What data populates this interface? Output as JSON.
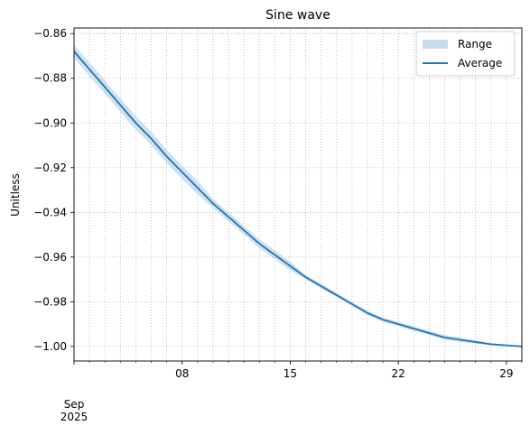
{
  "chart_data": {
    "type": "line",
    "title": "Sine wave",
    "xlabel": "",
    "ylabel": "Unitless",
    "x_start": "2025-09-01",
    "x_end": "2025-09-30",
    "ylim": [
      -1.0065,
      -0.8575
    ],
    "yticks": [
      -0.86,
      -0.88,
      -0.9,
      -0.92,
      -0.94,
      -0.96,
      -0.98,
      -1.0
    ],
    "ytick_labels": [
      "−0.86",
      "−0.88",
      "−0.90",
      "−0.92",
      "−0.94",
      "−0.96",
      "−0.98",
      "−1.00"
    ],
    "major_xticks": [
      {
        "date": "2025-09-08",
        "label": "08"
      },
      {
        "date": "2025-09-15",
        "label": "15"
      },
      {
        "date": "2025-09-22",
        "label": "22"
      },
      {
        "date": "2025-09-29",
        "label": "29"
      }
    ],
    "x_origin_label": {
      "month": "Sep",
      "year": "2025"
    },
    "grid": "dotted",
    "legend": {
      "placement": "top-right",
      "entries": [
        "Range",
        "Average"
      ]
    },
    "colors": {
      "line": "#1f77b4",
      "band": "#c6dcee"
    },
    "series": [
      {
        "name": "Average",
        "x": [
          "2025-09-01",
          "2025-09-02",
          "2025-09-03",
          "2025-09-04",
          "2025-09-05",
          "2025-09-06",
          "2025-09-07",
          "2025-09-08",
          "2025-09-09",
          "2025-09-10",
          "2025-09-11",
          "2025-09-12",
          "2025-09-13",
          "2025-09-14",
          "2025-09-15",
          "2025-09-16",
          "2025-09-17",
          "2025-09-18",
          "2025-09-19",
          "2025-09-20",
          "2025-09-21",
          "2025-09-22",
          "2025-09-23",
          "2025-09-24",
          "2025-09-25",
          "2025-09-26",
          "2025-09-27",
          "2025-09-28",
          "2025-09-29",
          "2025-09-30"
        ],
        "y": [
          -0.868,
          -0.876,
          -0.884,
          -0.892,
          -0.9,
          -0.907,
          -0.915,
          -0.922,
          -0.929,
          -0.936,
          -0.942,
          -0.948,
          -0.954,
          -0.959,
          -0.964,
          -0.969,
          -0.973,
          -0.977,
          -0.981,
          -0.985,
          -0.988,
          -0.99,
          -0.992,
          -0.994,
          -0.996,
          -0.997,
          -0.998,
          -0.999,
          -0.9995,
          -1.0
        ]
      },
      {
        "name": "Range",
        "x": [
          "2025-09-01",
          "2025-09-02",
          "2025-09-03",
          "2025-09-04",
          "2025-09-05",
          "2025-09-06",
          "2025-09-07",
          "2025-09-08",
          "2025-09-09",
          "2025-09-10",
          "2025-09-11",
          "2025-09-12",
          "2025-09-13",
          "2025-09-14",
          "2025-09-15",
          "2025-09-16",
          "2025-09-17",
          "2025-09-18",
          "2025-09-19",
          "2025-09-20",
          "2025-09-21",
          "2025-09-22",
          "2025-09-23",
          "2025-09-24",
          "2025-09-25",
          "2025-09-26",
          "2025-09-27",
          "2025-09-28",
          "2025-09-29",
          "2025-09-30"
        ],
        "low": [
          -0.871,
          -0.879,
          -0.887,
          -0.895,
          -0.903,
          -0.91,
          -0.918,
          -0.925,
          -0.932,
          -0.938,
          -0.944,
          -0.95,
          -0.956,
          -0.961,
          -0.966,
          -0.97,
          -0.974,
          -0.978,
          -0.982,
          -0.986,
          -0.989,
          -0.991,
          -0.993,
          -0.995,
          -0.997,
          -0.998,
          -0.9988,
          -0.9994,
          -0.9998,
          -1.0003
        ],
        "high": [
          -0.865,
          -0.873,
          -0.881,
          -0.889,
          -0.897,
          -0.904,
          -0.912,
          -0.919,
          -0.926,
          -0.934,
          -0.94,
          -0.946,
          -0.952,
          -0.957,
          -0.962,
          -0.968,
          -0.972,
          -0.976,
          -0.98,
          -0.984,
          -0.987,
          -0.989,
          -0.991,
          -0.993,
          -0.995,
          -0.996,
          -0.9972,
          -0.9986,
          -0.9992,
          -0.9997
        ]
      }
    ]
  }
}
